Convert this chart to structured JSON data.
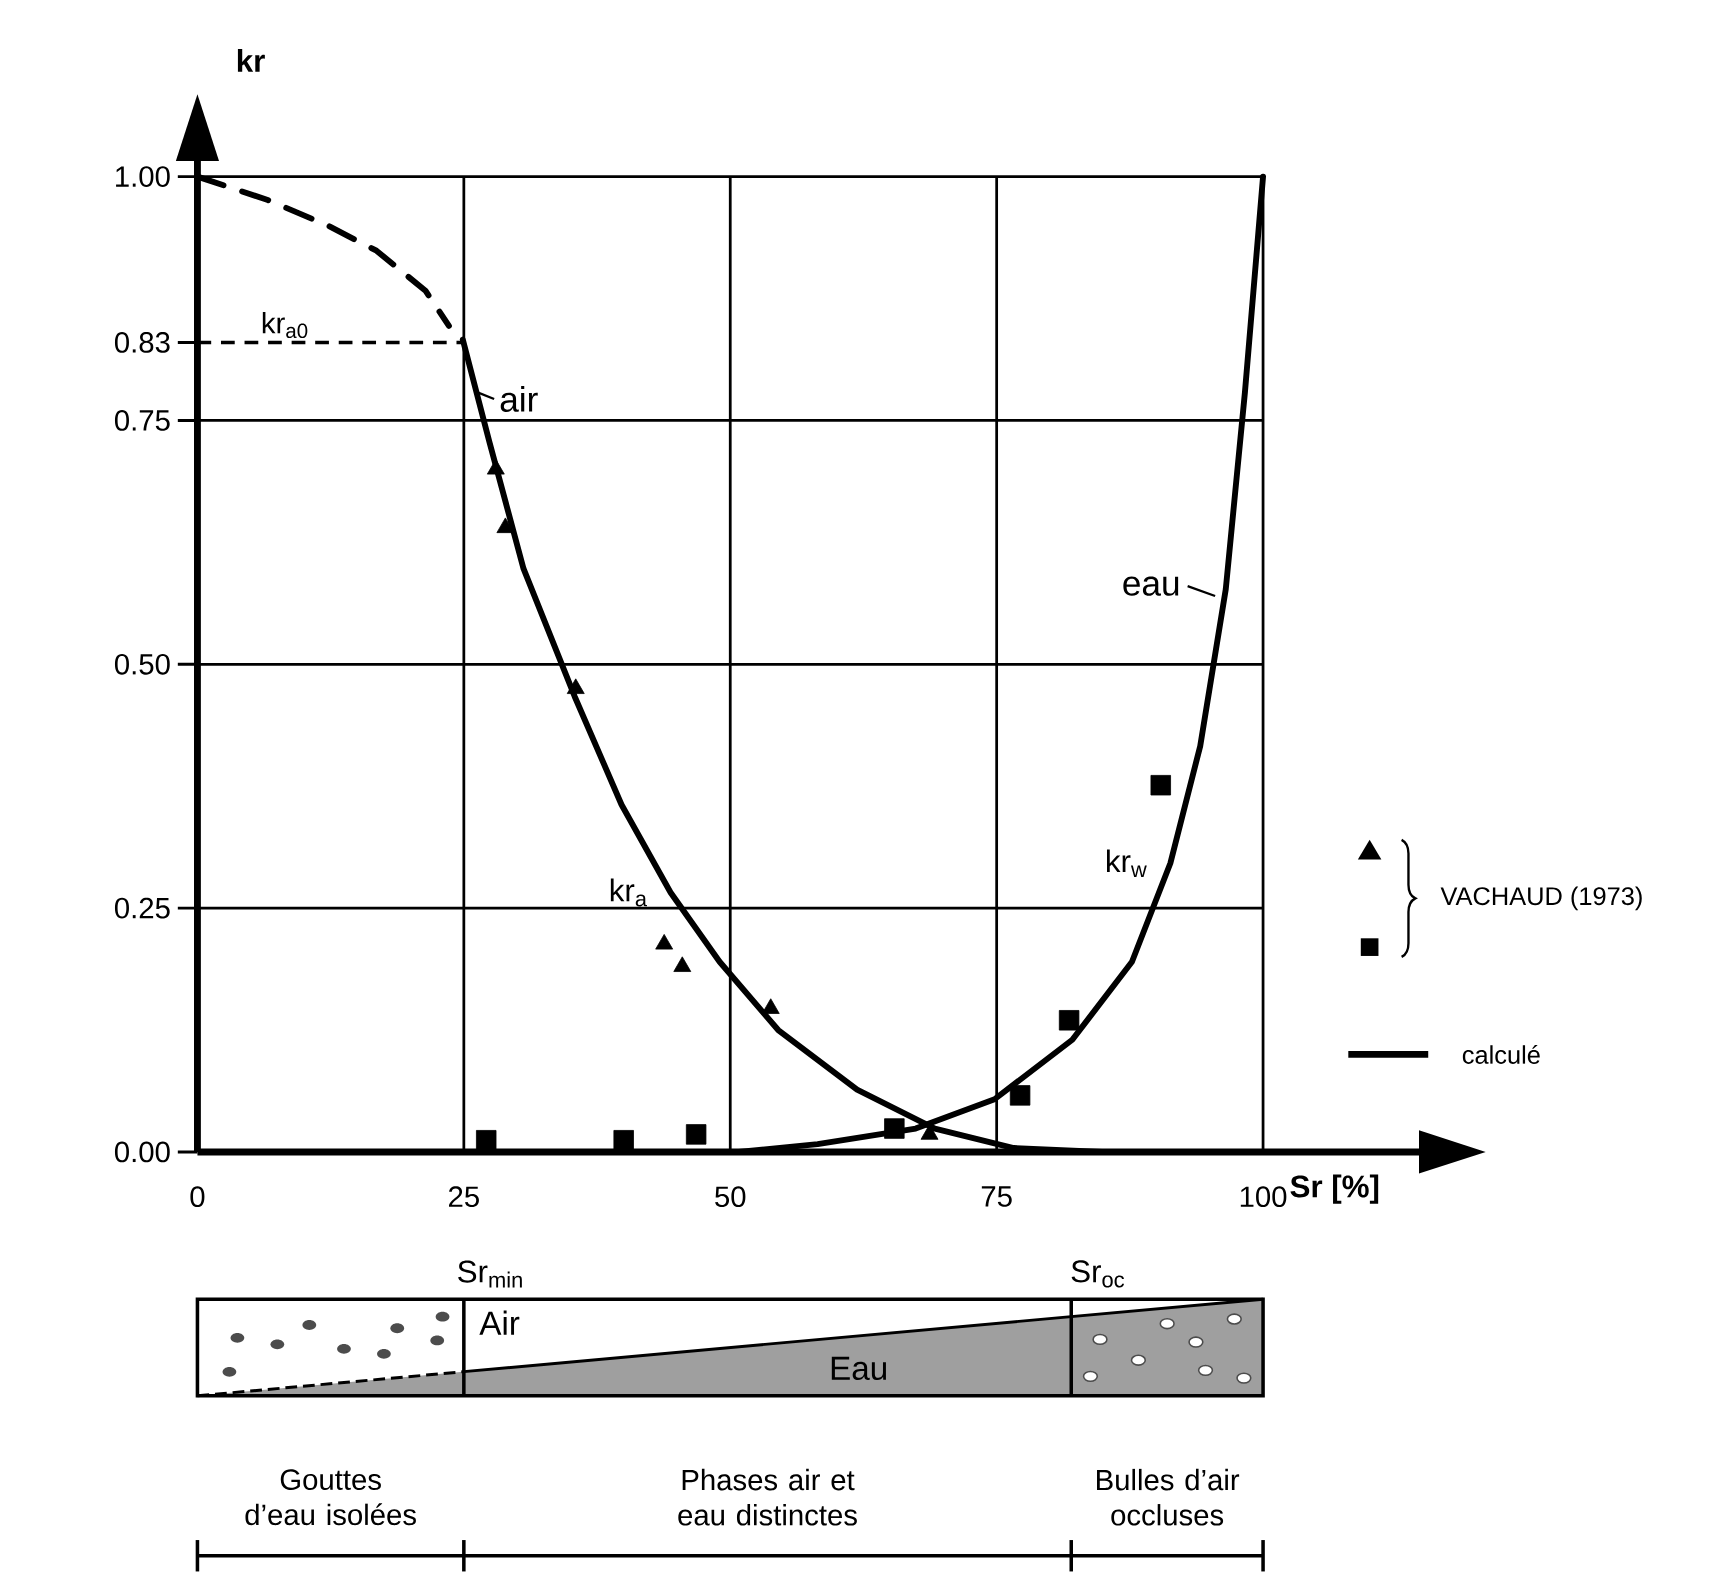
{
  "chart_data": {
    "type": "line",
    "xlabel": "Sr [%]",
    "ylabel": "kr",
    "xlim": [
      0,
      115
    ],
    "ylim": [
      0,
      1.02
    ],
    "xticks": [
      0,
      25,
      50,
      75,
      100
    ],
    "yticks": [
      {
        "value": 0,
        "label": "0.00"
      },
      {
        "value": 0.25,
        "label": "0.25"
      },
      {
        "value": 0.5,
        "label": "0.50"
      },
      {
        "value": 0.75,
        "label": "0.75"
      },
      {
        "value": 0.83,
        "label": "0.83"
      },
      {
        "value": 1,
        "label": "1.00"
      }
    ],
    "grid": true,
    "ref_lines": [
      {
        "axis": "y",
        "value": 0.83,
        "label": "kr$_{a0}$",
        "line_style": "dashed",
        "color": "#000000"
      }
    ],
    "series": [
      {
        "color": "#000000",
        "line_style": "dashed",
        "x": [
          0,
          6.6,
          12.2,
          16.8,
          21.4,
          23.6
        ],
        "values": [
          1.0,
          0.976,
          0.95,
          0.924,
          0.883,
          0.847
        ]
      },
      {
        "name": "kr$_{a}$",
        "color": "#000000",
        "line_style": "solid",
        "x": [
          24.9,
          27.4,
          30.6,
          35.4,
          39.8,
          44.4,
          49,
          54.5,
          61.9,
          69.2,
          76.6,
          84.9
        ],
        "values": [
          0.833,
          0.728,
          0.598,
          0.467,
          0.356,
          0.266,
          0.195,
          0.125,
          0.064,
          0.024,
          0.004,
          0
        ]
      },
      {
        "name": "kr$_{w}$",
        "color": "#000000",
        "line_style": "solid",
        "x": [
          50.8,
          58.2,
          67.4,
          74.8,
          82.1,
          87.7,
          91.3,
          94.1,
          96.5,
          98.3,
          100
        ],
        "values": [
          0,
          0.008,
          0.024,
          0.054,
          0.115,
          0.195,
          0.296,
          0.416,
          0.577,
          0.779,
          1.0
        ]
      },
      {
        "type": "scatter",
        "marker": "triangle",
        "color": "#000000",
        "x": [
          28,
          28.9,
          35.5,
          43.8,
          45.5,
          53.8,
          68.7
        ],
        "values": [
          0.7,
          0.64,
          0.475,
          0.213,
          0.19,
          0.147,
          0.018
        ]
      },
      {
        "type": "scatter",
        "marker": "square",
        "color": "#000000",
        "x": [
          27.1,
          40.0,
          46.8,
          65.4,
          77.2,
          81.8,
          90.4
        ],
        "values": [
          0.012,
          0.012,
          0.018,
          0.024,
          0.058,
          0.135,
          0.376
        ]
      }
    ],
    "annotations": [
      {
        "text": "air",
        "x": 26,
        "y": 0.78
      },
      {
        "text": "eau",
        "x": 95.5,
        "y": 0.57
      },
      "Sr$_{min}$",
      "Sr$_{oc}$",
      "Air",
      "Eau",
      "Gouttes d’eau isolées",
      "Phases air et eau distinctes",
      "Bulles d’air occluses",
      "VACHAUD (1973)",
      "calculé"
    ]
  }
}
